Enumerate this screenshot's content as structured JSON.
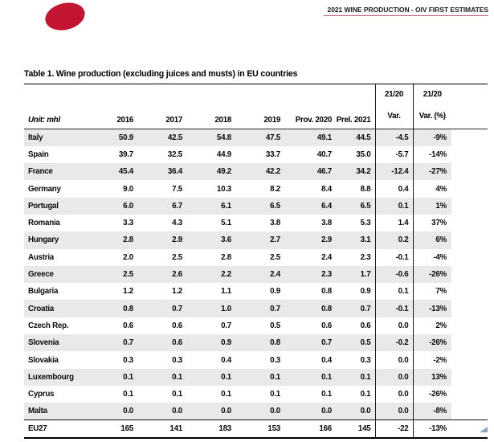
{
  "header": {
    "brand_text": "2021 WINE PRODUCTION - OIV FIRST ESTIMATES",
    "logo": "oiv-red-ellipse",
    "logo_color": "#c31432",
    "underline_color": "#c9626f"
  },
  "table": {
    "title": "Table 1. Wine production (excluding juices and musts) in EU countries",
    "unit_label": "Unit: mhl",
    "year_headers": [
      "2016",
      "2017",
      "2018",
      "2019",
      "Prov. 2020",
      "Prel. 2021"
    ],
    "var_header": {
      "line1": "21/20",
      "line2": "Var."
    },
    "var_pct_header": {
      "line1": "21/20",
      "line2": "Var. (%)"
    },
    "zebra_color": "#e9e9e9",
    "rows": [
      {
        "country": "Italy",
        "values": [
          "50.9",
          "42.5",
          "54.8",
          "47.5",
          "49.1",
          "44.5"
        ],
        "var": "-4.5",
        "var_pct": "-9%"
      },
      {
        "country": "Spain",
        "values": [
          "39.7",
          "32.5",
          "44.9",
          "33.7",
          "40.7",
          "35.0"
        ],
        "var": "-5.7",
        "var_pct": "-14%"
      },
      {
        "country": "France",
        "values": [
          "45.4",
          "36.4",
          "49.2",
          "42.2",
          "46.7",
          "34.2"
        ],
        "var": "-12.4",
        "var_pct": "-27%"
      },
      {
        "country": "Germany",
        "values": [
          "9.0",
          "7.5",
          "10.3",
          "8.2",
          "8.4",
          "8.8"
        ],
        "var": "0.4",
        "var_pct": "4%"
      },
      {
        "country": "Portugal",
        "values": [
          "6.0",
          "6.7",
          "6.1",
          "6.5",
          "6.4",
          "6.5"
        ],
        "var": "0.1",
        "var_pct": "1%"
      },
      {
        "country": "Romania",
        "values": [
          "3.3",
          "4.3",
          "5.1",
          "3.8",
          "3.8",
          "5.3"
        ],
        "var": "1.4",
        "var_pct": "37%"
      },
      {
        "country": "Hungary",
        "values": [
          "2.8",
          "2.9",
          "3.6",
          "2.7",
          "2.9",
          "3.1"
        ],
        "var": "0.2",
        "var_pct": "6%"
      },
      {
        "country": "Austria",
        "values": [
          "2.0",
          "2.5",
          "2.8",
          "2.5",
          "2.4",
          "2.3"
        ],
        "var": "-0.1",
        "var_pct": "-4%"
      },
      {
        "country": "Greece",
        "values": [
          "2.5",
          "2.6",
          "2.2",
          "2.4",
          "2.3",
          "1.7"
        ],
        "var": "-0.6",
        "var_pct": "-26%"
      },
      {
        "country": "Bulgaria",
        "values": [
          "1.2",
          "1.2",
          "1.1",
          "0.9",
          "0.8",
          "0.9"
        ],
        "var": "0.1",
        "var_pct": "7%"
      },
      {
        "country": "Croatia",
        "values": [
          "0.8",
          "0.7",
          "1.0",
          "0.7",
          "0.8",
          "0.7"
        ],
        "var": "-0.1",
        "var_pct": "-13%"
      },
      {
        "country": "Czech Rep.",
        "values": [
          "0.6",
          "0.6",
          "0.7",
          "0.5",
          "0.6",
          "0.6"
        ],
        "var": "0.0",
        "var_pct": "2%"
      },
      {
        "country": "Slovenia",
        "values": [
          "0.7",
          "0.6",
          "0.9",
          "0.8",
          "0.7",
          "0.5"
        ],
        "var": "-0.2",
        "var_pct": "-26%"
      },
      {
        "country": "Slovakia",
        "values": [
          "0.3",
          "0.3",
          "0.4",
          "0.3",
          "0.4",
          "0.3"
        ],
        "var": "0.0",
        "var_pct": "-2%"
      },
      {
        "country": "Luxembourg",
        "values": [
          "0.1",
          "0.1",
          "0.1",
          "0.1",
          "0.1",
          "0.1"
        ],
        "var": "0.0",
        "var_pct": "13%"
      },
      {
        "country": "Cyprus",
        "values": [
          "0.1",
          "0.1",
          "0.1",
          "0.1",
          "0.1",
          "0.1"
        ],
        "var": "0.0",
        "var_pct": "-26%"
      },
      {
        "country": "Malta",
        "values": [
          "0.0",
          "0.0",
          "0.0",
          "0.0",
          "0.0",
          "0.0"
        ],
        "var": "0.0",
        "var_pct": "-8%"
      }
    ],
    "total_row": {
      "country": "EU27",
      "values": [
        "165",
        "141",
        "183",
        "153",
        "166",
        "145"
      ],
      "var": "-22",
      "var_pct": "-13%"
    }
  },
  "artifacts": {
    "corner_marker": "blue-triangle"
  }
}
